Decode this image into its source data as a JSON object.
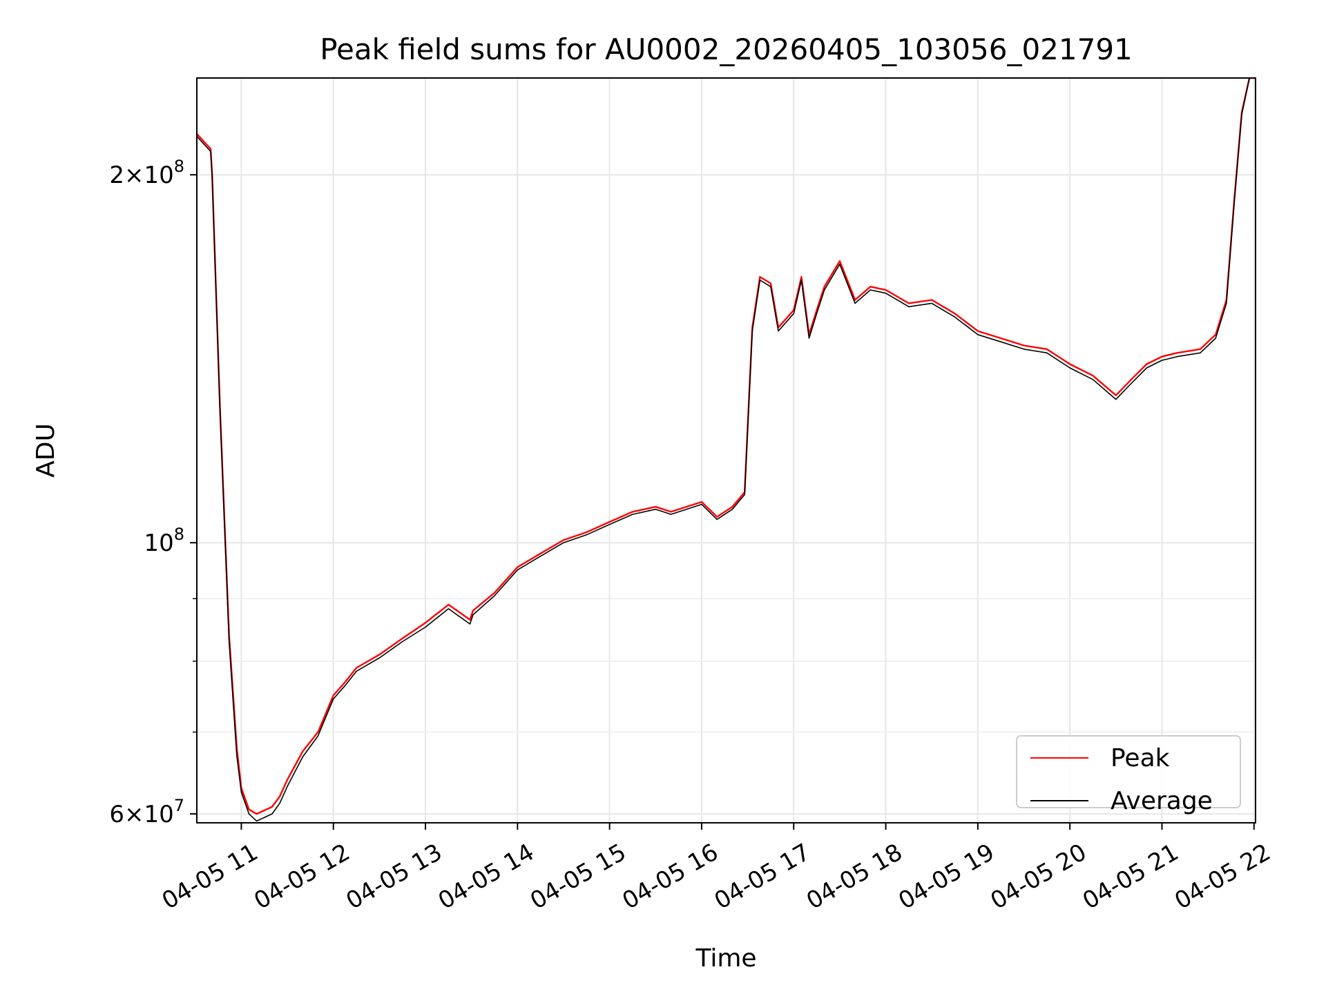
{
  "chart_data": {
    "type": "line",
    "title": "Peak field sums for AU0002_20260405_103056_021791",
    "xlabel": "Time",
    "ylabel": "ADU",
    "yscale": "log",
    "grid": true,
    "legend_position": "lower-right",
    "xlim": [
      "04-05 10:31",
      "04-05 22:01"
    ],
    "ylim": [
      59000000,
      240000000
    ],
    "x_ticks": [
      "04-05 11",
      "04-05 12",
      "04-05 13",
      "04-05 14",
      "04-05 15",
      "04-05 16",
      "04-05 17",
      "04-05 18",
      "04-05 19",
      "04-05 20",
      "04-05 21",
      "04-05 22"
    ],
    "y_ticks": [
      {
        "value": 60000000,
        "mantissa": "6",
        "exponent": "7"
      },
      {
        "value": 100000000,
        "mantissa": "",
        "exponent": "8"
      },
      {
        "value": 200000000,
        "mantissa": "2",
        "exponent": "8"
      }
    ],
    "y_minor_ticks": [
      70000000,
      80000000,
      90000000
    ],
    "colors": {
      "Peak": "#ff0000",
      "Average": "#000000"
    },
    "series": [
      {
        "name": "Peak",
        "color": "#ff0000",
        "x": [
          "04-05 10:31",
          "04-05 10:40",
          "04-05 10:41",
          "04-05 10:46",
          "04-05 10:52",
          "04-05 10:57",
          "04-05 11:00",
          "04-05 11:05",
          "04-05 11:10",
          "04-05 11:20",
          "04-05 11:25",
          "04-05 11:30",
          "04-05 11:40",
          "04-05 11:50",
          "04-05 12:00",
          "04-05 12:08",
          "04-05 12:15",
          "04-05 12:30",
          "04-05 12:45",
          "04-05 13:00",
          "04-05 13:15",
          "04-05 13:29",
          "04-05 13:31",
          "04-05 13:45",
          "04-05 14:00",
          "04-05 14:15",
          "04-05 14:30",
          "04-05 14:45",
          "04-05 15:00",
          "04-05 15:15",
          "04-05 15:30",
          "04-05 15:40",
          "04-05 16:00",
          "04-05 16:10",
          "04-05 16:20",
          "04-05 16:28",
          "04-05 16:33",
          "04-05 16:38",
          "04-05 16:45",
          "04-05 16:50",
          "04-05 17:00",
          "04-05 17:05",
          "04-05 17:10",
          "04-05 17:15",
          "04-05 17:20",
          "04-05 17:30",
          "04-05 17:40",
          "04-05 17:50",
          "04-05 18:00",
          "04-05 18:15",
          "04-05 18:30",
          "04-05 18:45",
          "04-05 19:00",
          "04-05 19:15",
          "04-05 19:30",
          "04-05 19:45",
          "04-05 20:00",
          "04-05 20:15",
          "04-05 20:30",
          "04-05 20:40",
          "04-05 20:50",
          "04-05 21:00",
          "04-05 21:10",
          "04-05 21:25",
          "04-05 21:35",
          "04-05 21:42",
          "04-05 21:47",
          "04-05 21:52",
          "04-05 21:57",
          "04-05 22:01"
        ],
        "values": [
          216000000,
          210000000,
          200000000,
          130000000,
          84000000,
          68000000,
          63000000,
          60500000,
          60000000,
          60800000,
          62000000,
          64000000,
          67500000,
          70000000,
          75000000,
          77000000,
          79000000,
          81000000,
          83500000,
          86000000,
          89000000,
          86500000,
          88000000,
          91000000,
          95500000,
          98000000,
          100500000,
          102000000,
          104000000,
          106000000,
          107000000,
          106000000,
          108000000,
          105000000,
          107000000,
          110000000,
          150000000,
          165000000,
          163000000,
          150000000,
          155000000,
          165000000,
          148000000,
          155000000,
          162000000,
          170000000,
          158000000,
          162000000,
          161000000,
          157000000,
          158000000,
          154000000,
          149000000,
          147000000,
          145000000,
          144000000,
          140000000,
          137000000,
          132000000,
          136000000,
          140000000,
          142000000,
          143000000,
          144000000,
          148000000,
          158000000,
          190000000,
          225000000,
          240000000,
          240000000
        ]
      },
      {
        "name": "Average",
        "color": "#000000",
        "x": [
          "04-05 10:31",
          "04-05 10:40",
          "04-05 10:41",
          "04-05 10:46",
          "04-05 10:52",
          "04-05 10:57",
          "04-05 11:00",
          "04-05 11:05",
          "04-05 11:10",
          "04-05 11:20",
          "04-05 11:25",
          "04-05 11:30",
          "04-05 11:40",
          "04-05 11:50",
          "04-05 12:00",
          "04-05 12:08",
          "04-05 12:15",
          "04-05 12:30",
          "04-05 12:45",
          "04-05 13:00",
          "04-05 13:15",
          "04-05 13:29",
          "04-05 13:31",
          "04-05 13:45",
          "04-05 14:00",
          "04-05 14:15",
          "04-05 14:30",
          "04-05 14:45",
          "04-05 15:00",
          "04-05 15:15",
          "04-05 15:30",
          "04-05 15:40",
          "04-05 16:00",
          "04-05 16:10",
          "04-05 16:20",
          "04-05 16:28",
          "04-05 16:33",
          "04-05 16:38",
          "04-05 16:45",
          "04-05 16:50",
          "04-05 17:00",
          "04-05 17:05",
          "04-05 17:10",
          "04-05 17:15",
          "04-05 17:20",
          "04-05 17:30",
          "04-05 17:40",
          "04-05 17:50",
          "04-05 18:00",
          "04-05 18:15",
          "04-05 18:30",
          "04-05 18:45",
          "04-05 19:00",
          "04-05 19:15",
          "04-05 19:30",
          "04-05 19:45",
          "04-05 20:00",
          "04-05 20:15",
          "04-05 20:30",
          "04-05 20:40",
          "04-05 20:50",
          "04-05 21:00",
          "04-05 21:10",
          "04-05 21:25",
          "04-05 21:35",
          "04-05 21:42",
          "04-05 21:47",
          "04-05 21:52",
          "04-05 21:57",
          "04-05 22:01"
        ],
        "values": [
          215000000,
          209000000,
          199000000,
          129000000,
          83000000,
          67000000,
          62500000,
          60000000,
          59200000,
          60000000,
          61200000,
          63200000,
          66800000,
          69500000,
          74500000,
          76500000,
          78500000,
          80500000,
          83000000,
          85300000,
          88300000,
          85800000,
          87300000,
          90500000,
          95000000,
          97500000,
          100000000,
          101500000,
          103500000,
          105500000,
          106500000,
          105500000,
          107500000,
          104500000,
          106500000,
          109500000,
          149000000,
          164000000,
          162000000,
          149000000,
          154000000,
          164000000,
          147000000,
          154000000,
          161000000,
          169000000,
          157000000,
          161000000,
          160000000,
          156000000,
          157000000,
          153000000,
          148000000,
          146000000,
          144000000,
          143000000,
          139000000,
          136000000,
          131000000,
          135000000,
          139000000,
          141000000,
          142000000,
          143000000,
          147000000,
          157000000,
          189000000,
          224000000,
          240000000,
          240000000
        ]
      }
    ]
  }
}
